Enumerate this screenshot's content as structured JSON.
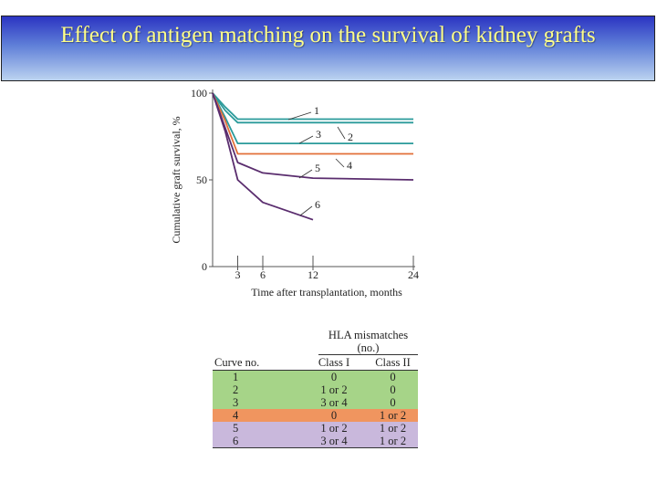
{
  "slide_title": "Effect of antigen matching on the survival of kidney grafts",
  "chart_data": {
    "type": "line",
    "title": "",
    "xlabel": "Time after transplantation, months",
    "ylabel": "Cumulative graft survival, %",
    "xlim": [
      0,
      24
    ],
    "ylim": [
      0,
      100
    ],
    "xticks": [
      3,
      6,
      12,
      24
    ],
    "yticks": [
      0,
      50,
      100
    ],
    "grid": false,
    "series": [
      {
        "name": "1",
        "color": "#2a9a9a",
        "x": [
          0,
          1.5,
          3,
          6,
          12,
          24
        ],
        "y": [
          100,
          92,
          85,
          85,
          85,
          85
        ]
      },
      {
        "name": "2",
        "color": "#2a9a9a",
        "x": [
          0,
          1.5,
          3,
          6,
          12,
          24
        ],
        "y": [
          100,
          90,
          83,
          83,
          83,
          83
        ]
      },
      {
        "name": "3",
        "color": "#2a9a9a",
        "x": [
          0,
          1.5,
          3,
          6,
          12,
          24
        ],
        "y": [
          100,
          86,
          71,
          71,
          71,
          71
        ]
      },
      {
        "name": "4",
        "color": "#e2703a",
        "x": [
          0,
          1.5,
          3,
          6,
          12,
          24
        ],
        "y": [
          100,
          84,
          65,
          65,
          65,
          65
        ]
      },
      {
        "name": "5",
        "color": "#5a2d6e",
        "x": [
          0,
          1.5,
          3,
          6,
          12,
          24
        ],
        "y": [
          100,
          80,
          60,
          54,
          51,
          50
        ]
      },
      {
        "name": "6",
        "color": "#5a2d6e",
        "x": [
          0,
          1.5,
          3,
          6,
          12
        ],
        "y": [
          100,
          78,
          50,
          37,
          27
        ]
      }
    ]
  },
  "table": {
    "group_header": "HLA mismatches (no.)",
    "headers": [
      "Curve no.",
      "Class I",
      "Class II"
    ],
    "rows": [
      {
        "curve": "1",
        "class_one": "0",
        "class_two": "0",
        "color": "#a6d488"
      },
      {
        "curve": "2",
        "class_one": "1 or 2",
        "class_two": "0",
        "color": "#a6d488"
      },
      {
        "curve": "3",
        "class_one": "3 or 4",
        "class_two": "0",
        "color": "#a6d488"
      },
      {
        "curve": "4",
        "class_one": "0",
        "class_two": "1 or 2",
        "color": "#f0955f"
      },
      {
        "curve": "5",
        "class_one": "1 or 2",
        "class_two": "1 or 2",
        "color": "#c9b8dc"
      },
      {
        "curve": "6",
        "class_one": "3 or 4",
        "class_two": "1 or 2",
        "color": "#c9b8dc"
      }
    ]
  }
}
